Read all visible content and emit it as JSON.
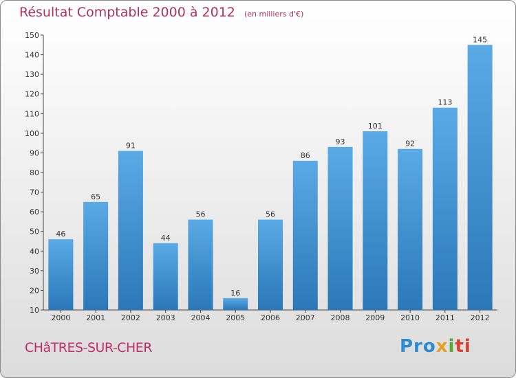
{
  "header": {
    "title": "Résultat Comptable 2000 à 2012",
    "unit": "(en milliers d'€)"
  },
  "footer": {
    "commune": "CHâTRES-SUR-CHER",
    "logo": [
      "Pro",
      "x",
      "i",
      "ti"
    ]
  },
  "colors": {
    "bar_top": "#5aaae6",
    "bar_bottom": "#2a78b8",
    "title": "#b03060"
  },
  "chart_data": {
    "type": "bar",
    "categories": [
      "2000",
      "2001",
      "2002",
      "2003",
      "2004",
      "2005",
      "2006",
      "2007",
      "2008",
      "2009",
      "2010",
      "2011",
      "2012"
    ],
    "values": [
      46,
      65,
      91,
      44,
      56,
      16,
      56,
      86,
      93,
      101,
      92,
      113,
      145
    ],
    "title": "Résultat Comptable 2000 à 2012",
    "ylim": [
      10,
      150
    ],
    "yticks": [
      10,
      20,
      30,
      40,
      50,
      60,
      70,
      80,
      90,
      100,
      110,
      120,
      130,
      140,
      150
    ],
    "grid": false,
    "legend": "none"
  }
}
